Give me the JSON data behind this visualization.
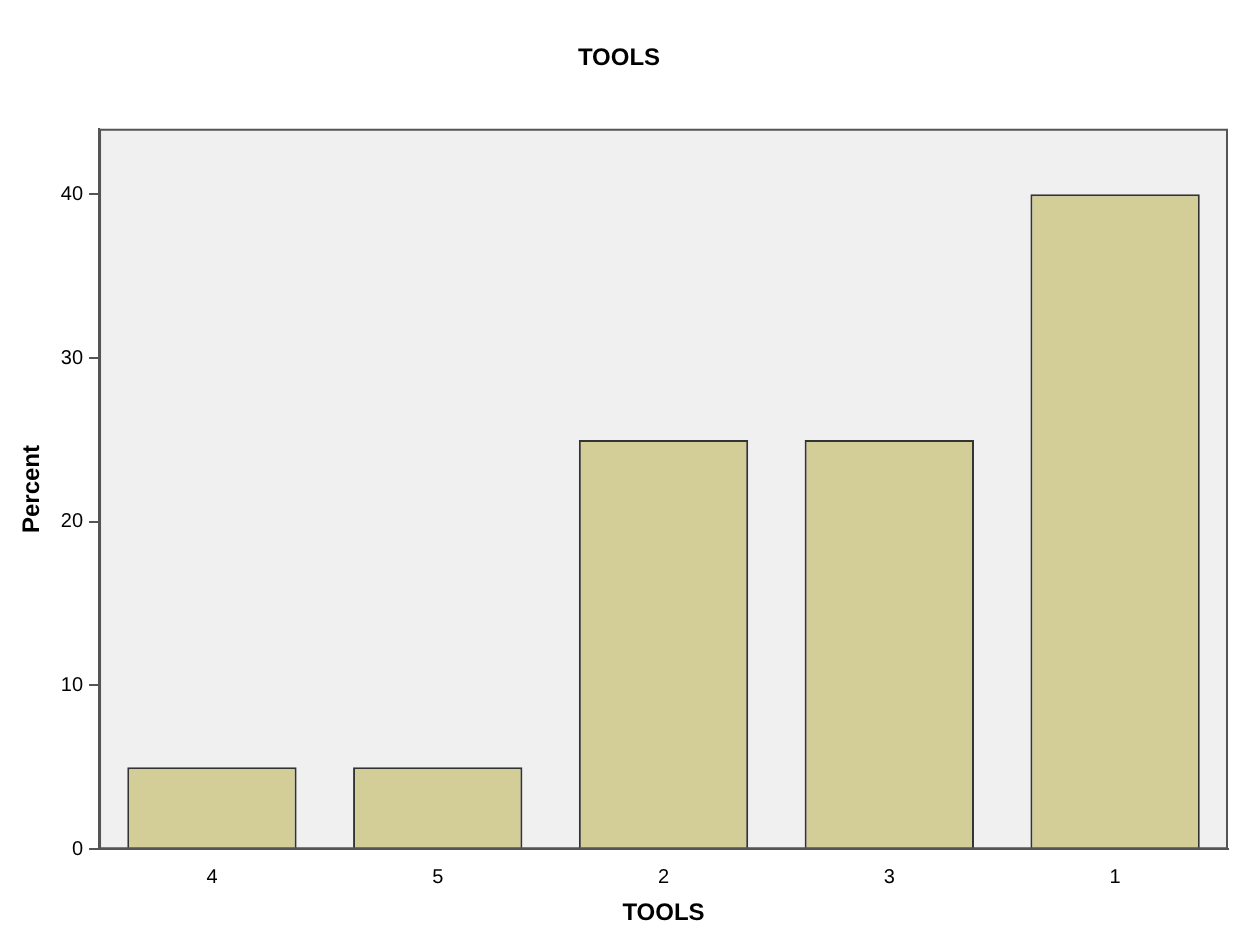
{
  "chart_data": {
    "type": "bar",
    "title": "TOOLS",
    "xlabel": "TOOLS",
    "ylabel": "Percent",
    "categories": [
      "4",
      "5",
      "2",
      "3",
      "1"
    ],
    "values": [
      5,
      5,
      25,
      25,
      40
    ],
    "color": "#d3ce97",
    "ylim": [
      0,
      44
    ],
    "yticks": [
      0,
      10,
      20,
      30,
      40
    ],
    "grid": false,
    "legend": false
  }
}
